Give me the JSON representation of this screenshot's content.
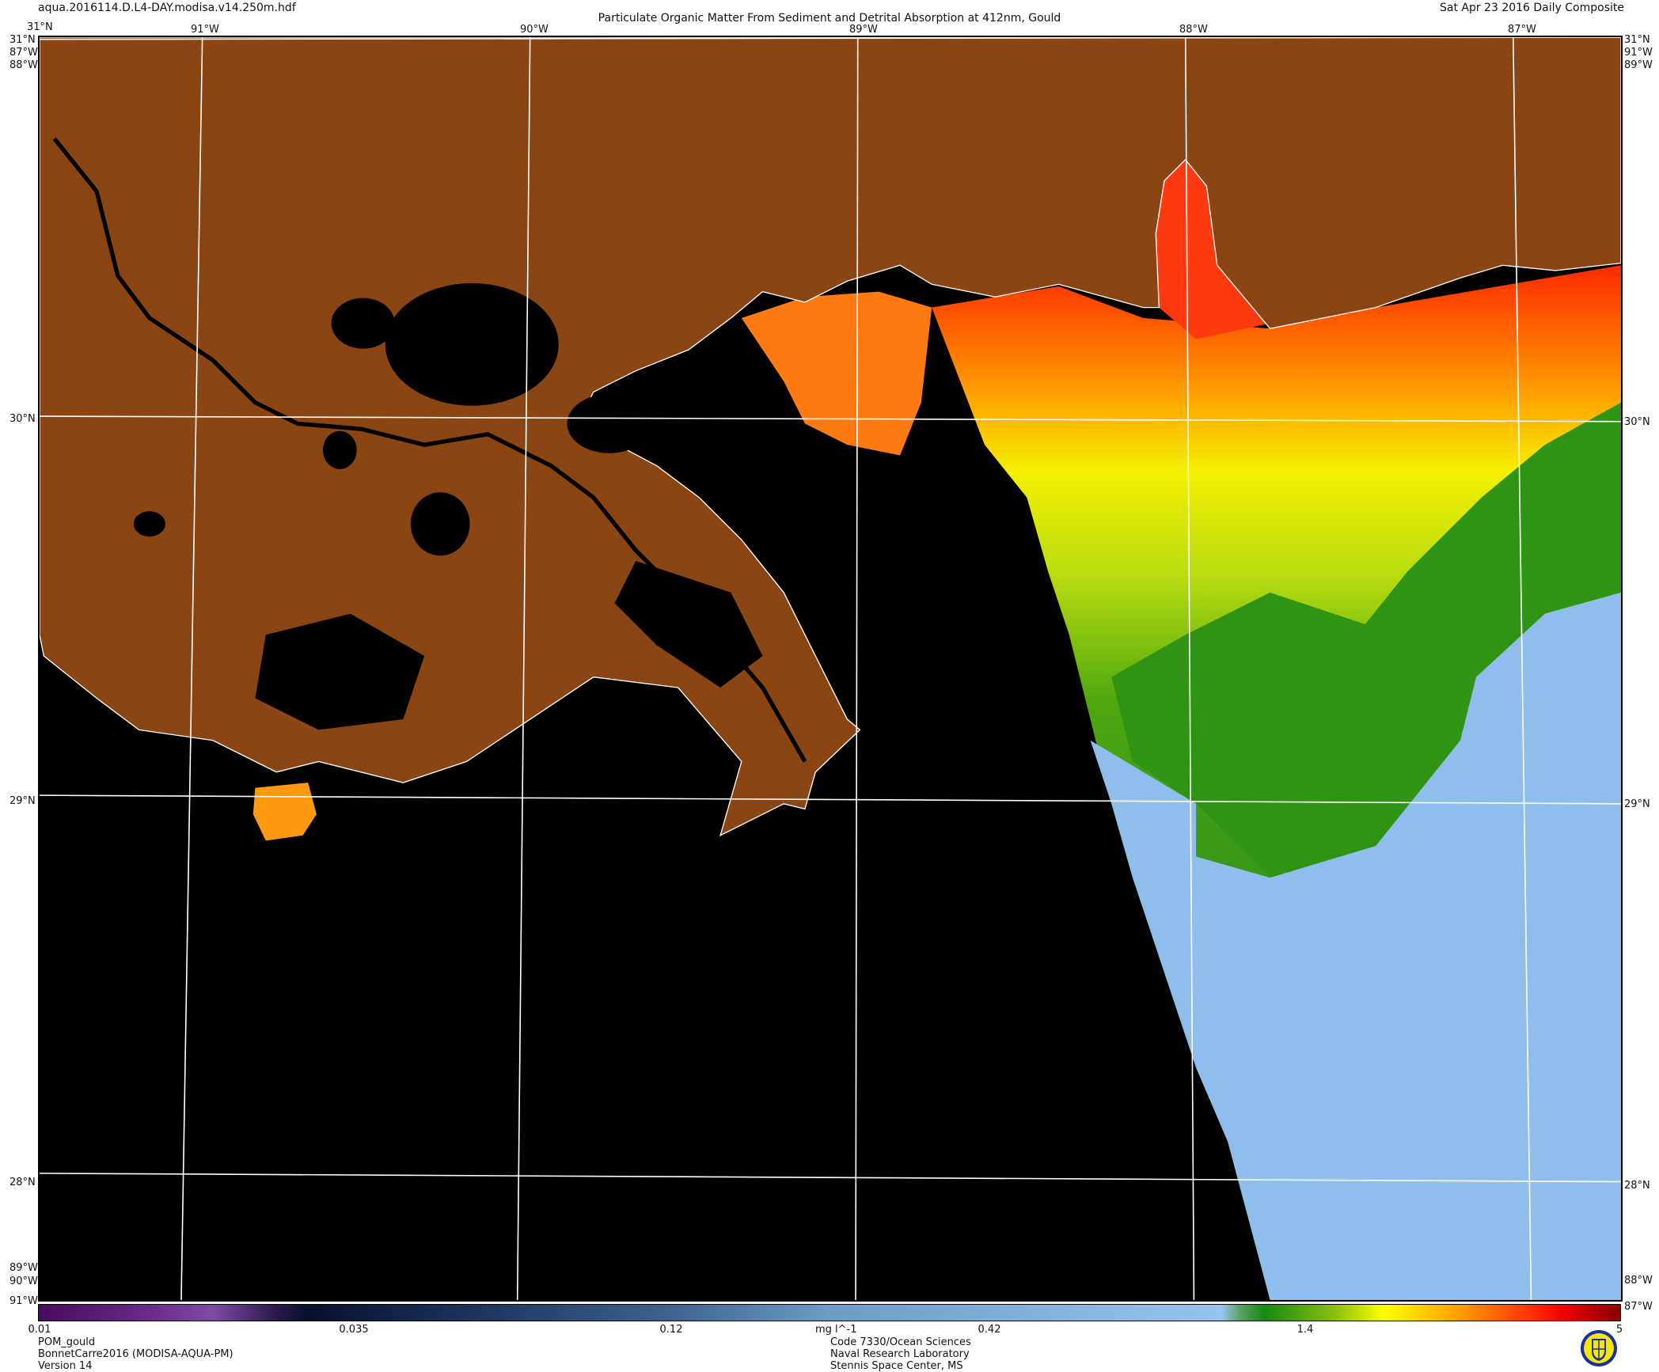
{
  "header": {
    "filename": "aqua.2016114.D.L4-DAY.modisa.v14.250m.hdf",
    "title": "Particulate Organic Matter From Sediment and Detrital Absorption at 412nm, Gould",
    "date": "Sat Apr 23 2016 Daily Composite"
  },
  "axes": {
    "top_lon_labels": [
      "31°N",
      "91°W",
      "90°W",
      "89°W",
      "88°W",
      "87°W"
    ],
    "left_labels": [
      "31°N",
      "87°W",
      "88°W",
      "30°N",
      "29°N",
      "28°N",
      "89°W",
      "90°W",
      "91°W"
    ],
    "right_labels": [
      "31°N",
      "91°W",
      "89°W",
      "30°N",
      "29°N",
      "28°N",
      "88°W",
      "87°W"
    ]
  },
  "map": {
    "colors": {
      "land": "#8B4513",
      "no_data": "#000000",
      "gridlines": "#ffffff",
      "coastline": "#ffffff"
    }
  },
  "colorbar": {
    "scale": "log",
    "range": [
      0.01,
      5
    ],
    "ticks": [
      "0.01",
      "0.035",
      "0.12",
      "0.42",
      "1.4",
      "5"
    ],
    "units": "mg l^-1"
  },
  "footer": {
    "left": [
      "POM_gould",
      "BonnetCarre2016 (MODISA-AQUA-PM)",
      "Version 14"
    ],
    "center": [
      "Code 7330/Ocean Sciences",
      "Naval Research Laboratory",
      "Stennis Space Center, MS"
    ],
    "logo": "Naval Research Laboratory seal"
  }
}
